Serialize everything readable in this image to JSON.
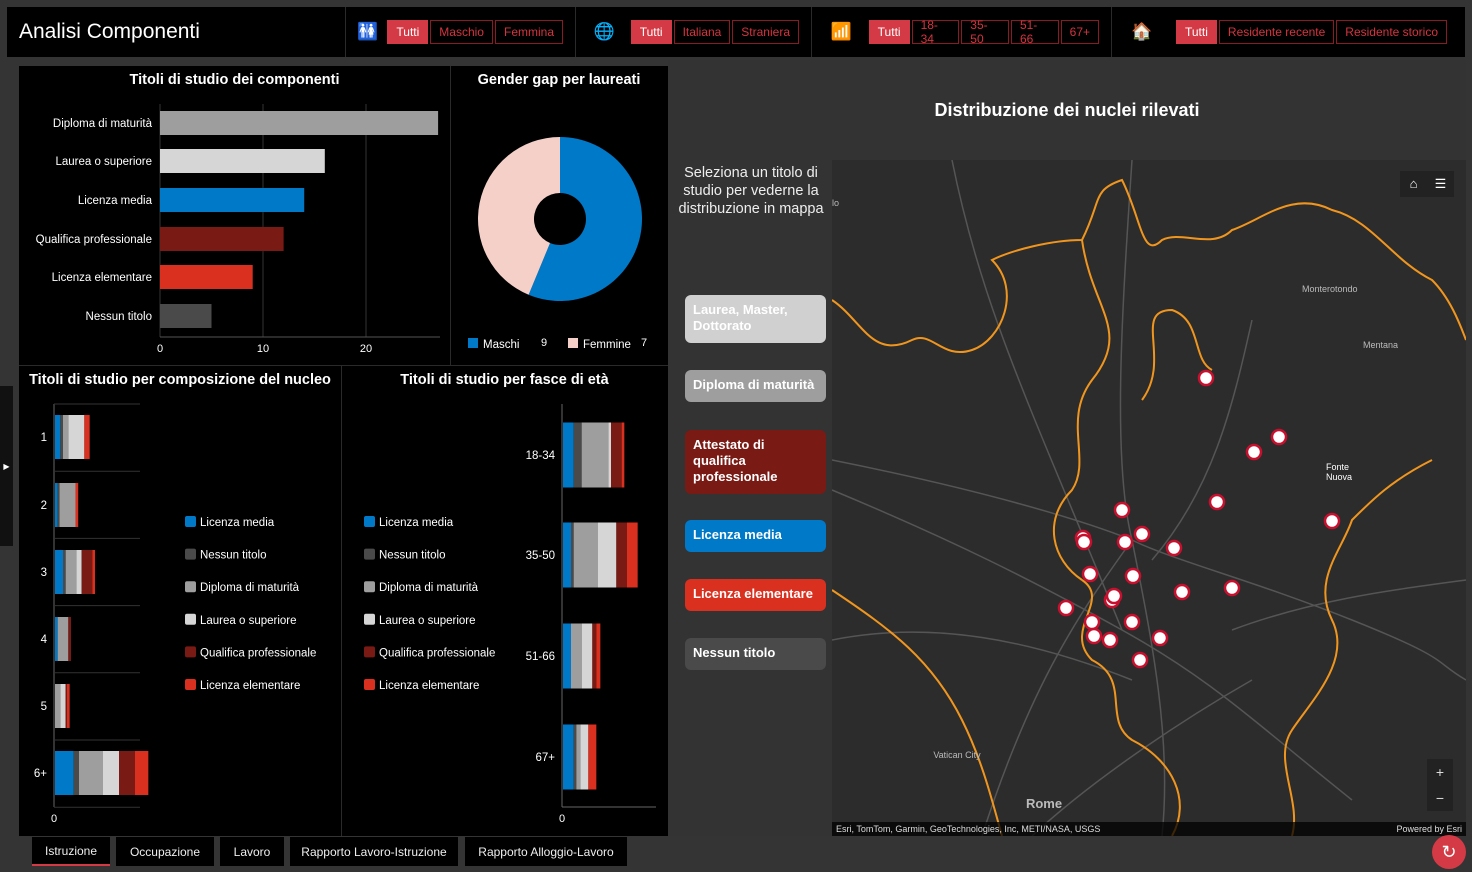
{
  "header": {
    "title": "Analisi Componenti",
    "filters": [
      {
        "icon": "gender-icon",
        "glyph": "🚻",
        "options": [
          "Tutti",
          "Maschio",
          "Femmina"
        ],
        "selected": 0
      },
      {
        "icon": "globe-icon",
        "glyph": "🌐",
        "options": [
          "Tutti",
          "Italiana",
          "Straniera"
        ],
        "selected": 0
      },
      {
        "icon": "age-chart-icon",
        "glyph": "📶",
        "options": [
          "Tutti",
          "18-34",
          "35-50",
          "51-66",
          "67+"
        ],
        "selected": 0
      },
      {
        "icon": "house-icon",
        "glyph": "🏠",
        "options": [
          "Tutti",
          "Residente recente",
          "Residente storico"
        ],
        "selected": 0
      }
    ]
  },
  "colors": {
    "licenza_media": "#0079c8",
    "nessun_titolo": "#4a4a4a",
    "diploma": "#9e9e9e",
    "laurea": "#d6d6d6",
    "qualifica": "#7a1a14",
    "licenza_elementare": "#d9301f",
    "maschi": "#0079c8",
    "femmine": "#f4d0c9",
    "accent": "#d43a45"
  },
  "chart_data": [
    {
      "type": "bar",
      "title": "Titoli di studio dei componenti",
      "orientation": "horizontal",
      "categories": [
        "Diploma di maturità",
        "Laurea o superiore",
        "Licenza media",
        "Qualifica professionale",
        "Licenza elementare",
        "Nessun titolo"
      ],
      "values": [
        27,
        16,
        14,
        12,
        9,
        5
      ],
      "bar_colors": [
        "#9e9e9e",
        "#d6d6d6",
        "#0079c8",
        "#7a1a14",
        "#d9301f",
        "#4a4a4a"
      ],
      "xticks": [
        "0",
        "10",
        "20"
      ],
      "xlim": [
        0,
        27
      ],
      "grid": true
    },
    {
      "type": "pie",
      "title": "Gender gap per laureati",
      "donut": true,
      "slices": [
        {
          "label": "Maschi",
          "value": 9,
          "color": "#0079c8"
        },
        {
          "label": "Femmine",
          "value": 7,
          "color": "#f4d0c9"
        }
      ]
    },
    {
      "type": "bar",
      "stacked": true,
      "orientation": "horizontal",
      "title": "Titoli di studio per composizione del nucleo",
      "categories": [
        "1",
        "2",
        "3",
        "4",
        "5",
        "6+"
      ],
      "xticks": [
        "0"
      ],
      "xlim": [
        0,
        35
      ],
      "legend": "right",
      "series": [
        {
          "name": "Licenza media",
          "color": "#0079c8",
          "values": [
            2,
            1,
            3,
            1,
            0,
            7
          ]
        },
        {
          "name": "Nessun titolo",
          "color": "#4a4a4a",
          "values": [
            1,
            0.7,
            1,
            0,
            0,
            2
          ]
        },
        {
          "name": "Diploma di maturità",
          "color": "#9e9e9e",
          "values": [
            2,
            6,
            4,
            4,
            2,
            9
          ]
        },
        {
          "name": "Laurea o superiore",
          "color": "#d6d6d6",
          "values": [
            6,
            0,
            2,
            0,
            2,
            6
          ]
        },
        {
          "name": "Qualifica professionale",
          "color": "#7a1a14",
          "values": [
            0,
            0,
            4,
            1,
            0.5,
            6
          ]
        },
        {
          "name": "Licenza elementare",
          "color": "#d9301f",
          "values": [
            2,
            1,
            1,
            0,
            1,
            5
          ]
        }
      ]
    },
    {
      "type": "bar",
      "stacked": true,
      "orientation": "horizontal",
      "title": "Titoli di studio per fasce di età",
      "categories": [
        "18-34",
        "35-50",
        "51-66",
        "67+"
      ],
      "xticks": [
        "0"
      ],
      "xlim": [
        0,
        29
      ],
      "legend": "left",
      "series": [
        {
          "name": "Licenza media",
          "color": "#0079c8",
          "values": [
            4,
            3,
            3,
            4
          ]
        },
        {
          "name": "Nessun titolo",
          "color": "#4a4a4a",
          "values": [
            3,
            1,
            0,
            1
          ]
        },
        {
          "name": "Diploma di maturità",
          "color": "#9e9e9e",
          "values": [
            10,
            9,
            4,
            1.5
          ]
        },
        {
          "name": "Laurea o superiore",
          "color": "#d6d6d6",
          "values": [
            1,
            7,
            4,
            3
          ]
        },
        {
          "name": "Qualifica professionale",
          "color": "#7a1a14",
          "values": [
            4,
            4,
            1.5,
            0
          ]
        },
        {
          "name": "Licenza elementare",
          "color": "#d9301f",
          "values": [
            1,
            4,
            1.5,
            3
          ]
        }
      ]
    }
  ],
  "map": {
    "title": "Distribuzione dei nuclei rilevati",
    "instruction": "Seleziona un titolo di studio per vederne la distribuzione in mappa",
    "buttons": [
      {
        "label": "Laurea, Master, Dottorato",
        "color": "#d0d0d0"
      },
      {
        "label": "Diploma di maturità",
        "color": "#9e9e9e"
      },
      {
        "label": "Attestato di qualifica professionale",
        "color": "#7a1a14"
      },
      {
        "label": "Licenza media",
        "color": "#0079c8"
      },
      {
        "label": "Licenza elementare",
        "color": "#d9301f"
      },
      {
        "label": "Nessun titolo",
        "color": "#4a4a4a"
      }
    ],
    "place_labels": [
      "Monterotondo",
      "Mentana",
      "Fonte Nuova",
      "Vatican City",
      "Rome",
      "lo"
    ],
    "attribution": "Esri, TomTom, Garmin, GeoTechnologies, Inc, METI/NASA, USGS",
    "powered_by": "Powered by Esri",
    "zoom_in": "+",
    "zoom_out": "−"
  },
  "tabs": [
    {
      "label": "Istruzione",
      "active": true
    },
    {
      "label": "Occupazione"
    },
    {
      "label": "Lavoro"
    },
    {
      "label": "Rapporto Lavoro-Istruzione"
    },
    {
      "label": "Rapporto Alloggio-Lavoro"
    }
  ]
}
